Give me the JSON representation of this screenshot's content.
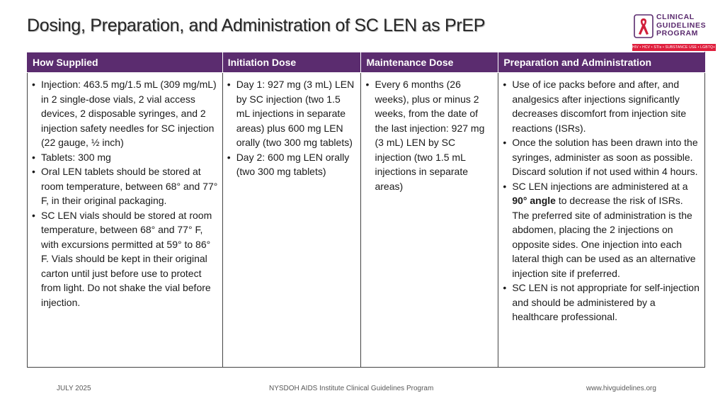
{
  "title": "Dosing, Preparation, and Administration of SC LEN as PrEP",
  "logo": {
    "lines": [
      "CLINICAL",
      "GUIDELINES",
      "PROGRAM"
    ],
    "tagline": "HIV • HCV • STIs • SUBSTANCE USE • LGBTQ+ HEALTH",
    "colors": {
      "text": "#5a2a6e",
      "ribbon": "#d11f3a",
      "strip": "#e01f3d"
    }
  },
  "table": {
    "headers": [
      "How Supplied",
      "Initiation Dose",
      "Maintenance Dose",
      "Preparation and Administration"
    ],
    "columns": [
      [
        [
          "Injection: 463.5 mg/1.5 mL (309 mg/mL) in 2 single-dose vials, 2 vial access devices, 2 disposable syringes, and 2 injection safety needles for SC injection (22 gauge, ½ inch)"
        ],
        [
          "Tablets: 300 mg"
        ],
        [
          "Oral LEN tablets should be stored at room temperature, between 68° and 77° F, in their original packaging."
        ],
        [
          "SC LEN vials should be stored at room temperature, between 68° and 77° F, with excursions permitted at 59° to 86° F. Vials should be kept in their original carton until just before use to protect from light. Do not shake the vial before injection."
        ]
      ],
      [
        [
          "Day 1: 927 mg (3 mL) LEN by SC injection (two 1.5 mL injections in separate areas) plus 600 mg LEN orally (two 300 mg tablets)"
        ],
        [
          "Day 2: 600 mg LEN orally (two 300 mg tablets)"
        ]
      ],
      [
        [
          "Every 6 months (26 weeks), plus or minus 2 weeks, from the date of the last injection: 927 mg (3 mL) LEN by SC injection (two 1.5 mL injections in separate areas)"
        ]
      ],
      [
        [
          "Use of ice packs before and after, and analgesics after injections significantly decreases discomfort from injection site reactions (ISRs)."
        ],
        [
          "Once the solution has been drawn into the syringes, administer as soon as possible. Discard solution if not used within 4 hours."
        ],
        [
          "SC LEN injections are administered at a ",
          "90° angle",
          " to decrease the risk of ISRs. The preferred site of administration is the abdomen, placing the 2 injections on opposite sides. One injection into each lateral thigh can be used as an alternative injection site if preferred."
        ],
        [
          "SC LEN is not appropriate for self-injection and should be administered by a healthcare professional."
        ]
      ]
    ]
  },
  "footer": {
    "date": "JULY 2025",
    "program": "NYSDOH AIDS Institute Clinical Guidelines Program",
    "url": "www.hivguidelines.org"
  },
  "colors": {
    "header_bg": "#5b2c6f",
    "header_text": "#ffffff"
  }
}
